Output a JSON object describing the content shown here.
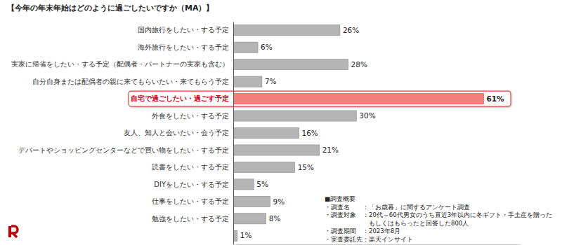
{
  "chart_data": {
    "type": "bar",
    "orientation": "horizontal",
    "title": "【今年の年末年始はどのように過ごしたいですか（MA）】",
    "categories": [
      "国内旅行をしたい・する予定",
      "海外旅行をしたい・する予定",
      "実家に帰省をしたい・する予定（配偶者・パートナーの実家も含む）",
      "自分自身または配偶者の親に来てもらいたい・来てもらう予定",
      "自宅で過ごしたい・過ごす予定",
      "外食をしたい・する予定",
      "友人、知人と会いたい・会う予定",
      "デパートやショッピングセンターなどで買い物をしたい・する予定",
      "読書をしたい・する予定",
      "DIYをしたい・する予定",
      "仕事をしたい・する予定",
      "勉強をしたい・する予定",
      null
    ],
    "values": [
      26,
      6,
      28,
      7,
      61,
      30,
      16,
      21,
      15,
      5,
      9,
      8,
      1
    ],
    "value_labels": [
      "26%",
      "6%",
      "28%",
      "7%",
      "61%",
      "30%",
      "16%",
      "21%",
      "15%",
      "5%",
      "9%",
      "8%",
      "1%"
    ],
    "colors": [
      "#b4b4b4",
      "#b4b4b4",
      "#b4b4b4",
      "#b4b4b4",
      "#f47f7f",
      "#b4b4b4",
      "#b4b4b4",
      "#b4b4b4",
      "#b4b4b4",
      "#b4b4b4",
      "#b4b4b4",
      "#b4b4b4",
      "#b4b4b4"
    ],
    "data_labels": true,
    "xlim": [
      0,
      70
    ],
    "xticks": [],
    "tick_labels": "y",
    "grid": false,
    "annotations": [
      "■調査概要",
      "・調査名　　：「お歳暮」に関するアンケート調査",
      "・調査対象　：20代～60代男女のうち直近3年以内に冬ギフト・手土産を贈った",
      "　　　　　　　もしくはもらったと回答した800人",
      "・調査期間　：2023年8月",
      "・実査委託先：楽天インサイト"
    ]
  }
}
